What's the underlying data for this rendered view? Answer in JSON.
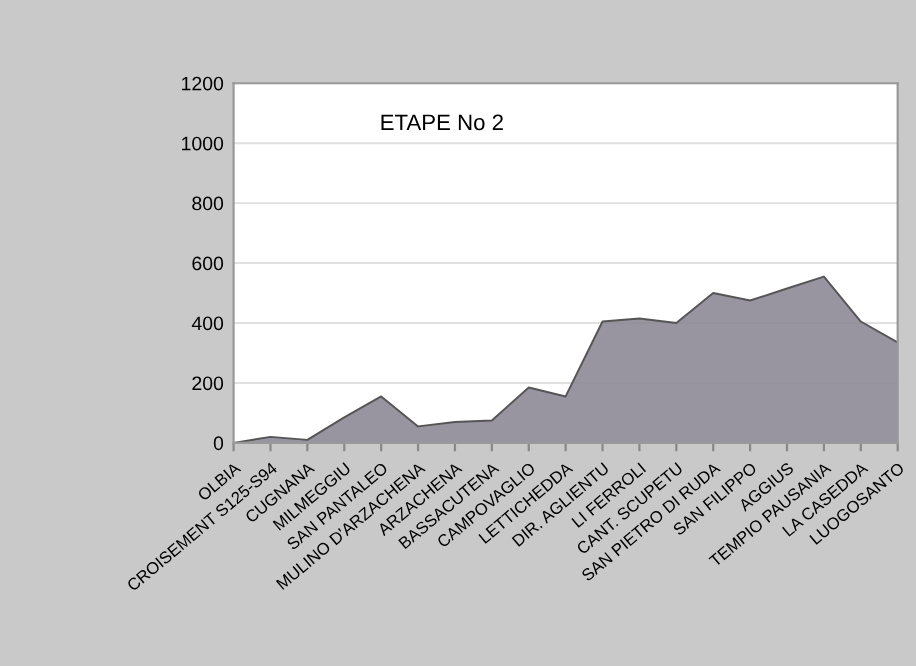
{
  "chart_data": {
    "type": "area",
    "title": "ETAPE No 2",
    "categories": [
      "OLBIA",
      "CROISEMENT S125-S94",
      "CUGNANA",
      "MILMEGGIU",
      "SAN PANTALEO",
      "MULINO D'ARZACHENA",
      "ARZACHENA",
      "BASSACUTENA",
      "CAMPOVAGLIO",
      "LETTICHEDDA",
      "DIR. AGLIENTU",
      "LI FERROLI",
      "CANT. SCUPETU",
      "SAN PIETRO DI RUDA",
      "SAN FILIPPO",
      "AGGIUS",
      "TEMPIO PAUSANIA",
      "LA CASEDDA",
      "LUOGOSANTO"
    ],
    "series": [
      {
        "color": "#8e8a96",
        "values": [
          0,
          20,
          10,
          85,
          155,
          55,
          70,
          75,
          185,
          155,
          405,
          415,
          400,
          500,
          475,
          515,
          555,
          405,
          335
        ]
      }
    ],
    "ylim": [
      0,
      1200
    ],
    "yticks": [
      0,
      200,
      400,
      600,
      800,
      1000,
      1200
    ],
    "grid": "y"
  }
}
